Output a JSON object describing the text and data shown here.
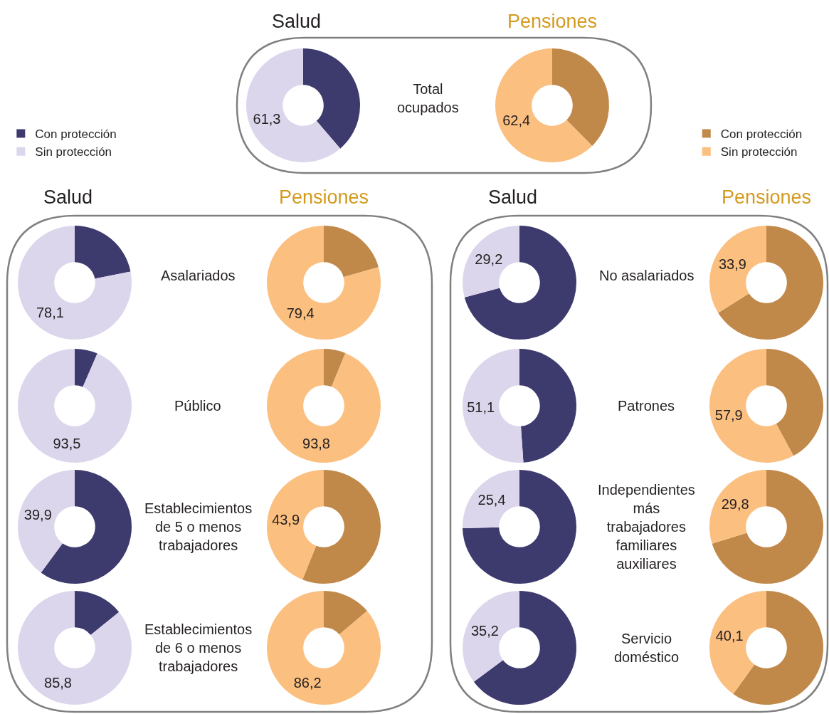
{
  "chart_data": [
    {
      "type": "donut",
      "title": "Salud",
      "categories": [
        "Con protección",
        "Sin protección"
      ],
      "values": [
        38.7,
        61.3
      ],
      "colors": [
        "#3d3a6e",
        "#dcd6ec"
      ],
      "value_labels": [
        null,
        "61,3"
      ],
      "legend": "left",
      "annotations": [
        "Total\nocupados"
      ]
    },
    {
      "type": "donut",
      "title": "Pensiones",
      "categories": [
        "Con protección",
        "Sin protección"
      ],
      "values": [
        37.6,
        62.4
      ],
      "colors": [
        "#c0894a",
        "#fbbf80"
      ],
      "value_labels": [
        null,
        "62,4"
      ],
      "legend": "right"
    },
    {
      "type": "donut",
      "title": "Salud",
      "values": [
        21.9,
        78.1
      ],
      "colors": [
        "#3d3a6e",
        "#dcd6ec"
      ],
      "value_labels": [
        null,
        "78,1"
      ],
      "annotations": [
        "Asalariados"
      ]
    },
    {
      "type": "donut",
      "title": "Pensiones",
      "values": [
        20.6,
        79.4
      ],
      "colors": [
        "#c0894a",
        "#fbbf80"
      ],
      "value_labels": [
        null,
        "79,4"
      ]
    },
    {
      "type": "donut",
      "title": "Salud",
      "values": [
        70.8,
        29.2
      ],
      "colors": [
        "#3d3a6e",
        "#dcd6ec"
      ],
      "value_labels": [
        null,
        "29,2"
      ],
      "annotations": [
        "No asalariados"
      ]
    },
    {
      "type": "donut",
      "title": "Pensiones",
      "values": [
        66.1,
        33.9
      ],
      "colors": [
        "#c0894a",
        "#fbbf80"
      ],
      "value_labels": [
        null,
        "33,9"
      ]
    },
    {
      "type": "donut",
      "values": [
        6.5,
        93.5
      ],
      "colors": [
        "#3d3a6e",
        "#dcd6ec"
      ],
      "value_labels": [
        null,
        "93,5"
      ],
      "annotations": [
        "Público"
      ]
    },
    {
      "type": "donut",
      "values": [
        6.2,
        93.8
      ],
      "colors": [
        "#c0894a",
        "#fbbf80"
      ],
      "value_labels": [
        null,
        "93,8"
      ]
    },
    {
      "type": "donut",
      "values": [
        48.9,
        51.1
      ],
      "colors": [
        "#3d3a6e",
        "#dcd6ec"
      ],
      "value_labels": [
        null,
        "51,1"
      ],
      "annotations": [
        "Patrones"
      ]
    },
    {
      "type": "donut",
      "values": [
        42.1,
        57.9
      ],
      "colors": [
        "#c0894a",
        "#fbbf80"
      ],
      "value_labels": [
        null,
        "57,9"
      ]
    },
    {
      "type": "donut",
      "values": [
        60.1,
        39.9
      ],
      "colors": [
        "#3d3a6e",
        "#dcd6ec"
      ],
      "value_labels": [
        null,
        "39,9"
      ],
      "annotations": [
        "Establecimientos\nde 5 o menos\ntrabajadores"
      ]
    },
    {
      "type": "donut",
      "values": [
        56.1,
        43.9
      ],
      "colors": [
        "#c0894a",
        "#fbbf80"
      ],
      "value_labels": [
        null,
        "43,9"
      ]
    },
    {
      "type": "donut",
      "values": [
        74.6,
        25.4
      ],
      "colors": [
        "#3d3a6e",
        "#dcd6ec"
      ],
      "value_labels": [
        null,
        "25,4"
      ],
      "annotations": [
        "Independientes\nmás\ntrabajadores\nfamiliares\nauxiliares"
      ]
    },
    {
      "type": "donut",
      "values": [
        70.2,
        29.8
      ],
      "colors": [
        "#c0894a",
        "#fbbf80"
      ],
      "value_labels": [
        null,
        "29,8"
      ]
    },
    {
      "type": "donut",
      "values": [
        14.2,
        85.8
      ],
      "colors": [
        "#3d3a6e",
        "#dcd6ec"
      ],
      "value_labels": [
        null,
        "85,8"
      ],
      "annotations": [
        "Establecimientos\nde 6 o menos\ntrabajadores"
      ]
    },
    {
      "type": "donut",
      "values": [
        13.8,
        86.2
      ],
      "colors": [
        "#c0894a",
        "#fbbf80"
      ],
      "value_labels": [
        null,
        "86,2"
      ]
    },
    {
      "type": "donut",
      "values": [
        64.8,
        35.2
      ],
      "colors": [
        "#3d3a6e",
        "#dcd6ec"
      ],
      "value_labels": [
        null,
        "35,2"
      ],
      "annotations": [
        "Servicio\ndoméstico"
      ]
    },
    {
      "type": "donut",
      "values": [
        59.9,
        40.1
      ],
      "colors": [
        "#c0894a",
        "#fbbf80"
      ],
      "value_labels": [
        null,
        "40,1"
      ]
    }
  ]
}
